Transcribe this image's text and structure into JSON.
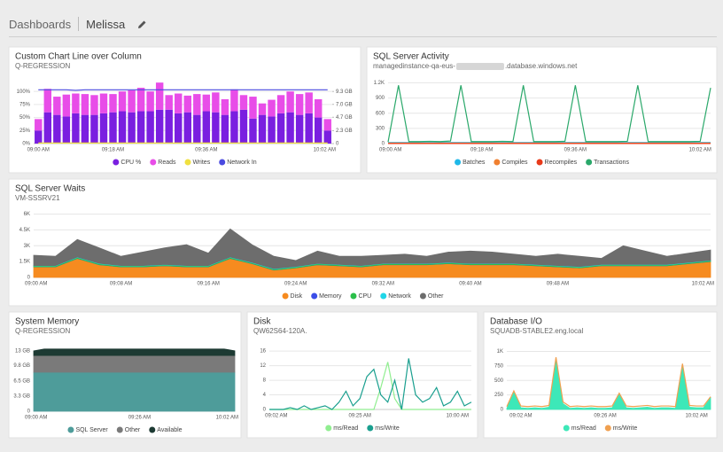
{
  "header": {
    "breadcrumb": "Dashboards",
    "title": "Melissa"
  },
  "chart_data": [
    {
      "type": "combo",
      "title": "Custom Chart Line over Column",
      "subtitle": "Q-REGRESSION",
      "stacked": true,
      "grid": true,
      "categories": [
        "09:00 AM",
        null,
        null,
        null,
        null,
        null,
        null,
        null,
        "09:18 AM",
        null,
        null,
        null,
        null,
        null,
        null,
        null,
        null,
        null,
        "09:36 AM",
        null,
        null,
        null,
        null,
        null,
        null,
        null,
        null,
        null,
        null,
        null,
        null,
        "10:02 AM"
      ],
      "ylim": [
        0,
        119
      ],
      "yticks": [
        {
          "value": 0,
          "label": "0%"
        },
        {
          "value": 25,
          "label": "25%"
        },
        {
          "value": 50,
          "label": "50%"
        },
        {
          "value": 75,
          "label": "75%"
        },
        {
          "value": 100,
          "label": "100%"
        }
      ],
      "y2lim": [
        0,
        11.07
      ],
      "y2ticks": [
        0,
        {
          "value": 2.3,
          "label": "2.3 GB"
        },
        {
          "value": 4.7,
          "label": "4.7 GB"
        },
        {
          "value": 7.0,
          "label": "7.0 GB"
        },
        {
          "value": 9.3,
          "label": "9.3 GB"
        }
      ],
      "series": [
        {
          "name": "CPU %",
          "type": "bar",
          "color": "#7a1fe0",
          "values": [
            25,
            60,
            55,
            52,
            58,
            55,
            55,
            58,
            60,
            62,
            60,
            62,
            62,
            65,
            65,
            58,
            60,
            55,
            62,
            60,
            55,
            62,
            65,
            48,
            55,
            52,
            58,
            60,
            55,
            58,
            50,
            25
          ]
        },
        {
          "name": "Reads",
          "type": "bar",
          "color": "#e84de8",
          "values": [
            22,
            45,
            35,
            42,
            38,
            40,
            38,
            38,
            35,
            38,
            42,
            45,
            38,
            52,
            28,
            38,
            32,
            40,
            32,
            38,
            30,
            42,
            28,
            42,
            22,
            32,
            35,
            40,
            40,
            40,
            35,
            22
          ]
        },
        {
          "name": "Writes",
          "type": "line",
          "axis": "y2",
          "color": "#f0e040",
          "values": [
            0.1,
            0.1,
            0.1,
            0.1,
            0.1,
            0.1,
            0.1,
            0.1,
            0.1,
            0.1,
            0.1,
            0.1,
            0.1,
            0.1,
            0.1,
            0.1,
            0.1,
            0.1,
            0.1,
            0.1,
            0.1,
            0.1,
            0.1,
            0.1,
            0.1,
            0.1,
            0.1,
            0.1,
            0.1,
            0.1,
            0.1,
            0.1
          ]
        },
        {
          "name": "Network In",
          "type": "line",
          "axis": "y2",
          "color": "#4a4ae0",
          "values": [
            9.6,
            9.6,
            9.6,
            9.6,
            9.5,
            9.6,
            9.6,
            9.6,
            9.6,
            9.6,
            9.6,
            9.6,
            9.6,
            9.6,
            9.6,
            9.6,
            9.6,
            9.6,
            9.6,
            9.6,
            9.6,
            9.6,
            9.6,
            9.6,
            9.6,
            9.6,
            9.6,
            9.6,
            9.6,
            9.6,
            9.6,
            9.6
          ]
        }
      ]
    },
    {
      "type": "line",
      "title": "SQL Server Activity",
      "subtitle_parts": [
        "managedinstance-qa-eus-",
        ".database.windows.net"
      ],
      "grid": true,
      "categories": [
        "09:00 AM",
        null,
        null,
        null,
        null,
        null,
        null,
        null,
        null,
        "09:18 AM",
        null,
        null,
        null,
        null,
        null,
        null,
        null,
        null,
        "09:36 AM",
        null,
        null,
        null,
        null,
        null,
        null,
        null,
        null,
        null,
        null,
        null,
        "10:02 AM",
        null
      ],
      "ylim": [
        0,
        1260
      ],
      "yticks": [
        0,
        300,
        600,
        900,
        {
          "value": 1200,
          "label": "1.2K"
        }
      ],
      "series": [
        {
          "name": "Batches",
          "color": "#1fb8e8",
          "values": [
            20,
            20,
            20,
            20,
            20,
            20,
            20,
            20,
            20,
            20,
            20,
            20,
            20,
            20,
            20,
            20,
            20,
            20,
            20,
            20,
            20,
            20,
            20,
            20,
            20,
            20,
            20,
            20,
            20,
            20,
            20,
            20
          ]
        },
        {
          "name": "Compiles",
          "color": "#f08030",
          "values": [
            10,
            10,
            10,
            10,
            10,
            10,
            10,
            10,
            10,
            10,
            10,
            10,
            10,
            10,
            10,
            10,
            10,
            10,
            10,
            10,
            10,
            10,
            10,
            10,
            10,
            10,
            10,
            10,
            10,
            10,
            10,
            10
          ]
        },
        {
          "name": "Recompiles",
          "color": "#e83a1a",
          "values": [
            2,
            2,
            2,
            2,
            2,
            2,
            2,
            2,
            2,
            2,
            2,
            2,
            2,
            2,
            2,
            2,
            2,
            2,
            2,
            2,
            2,
            2,
            2,
            2,
            2,
            2,
            2,
            2,
            2,
            2,
            2,
            2
          ]
        },
        {
          "name": "Transactions",
          "color": "#2aa86a",
          "values": [
            30,
            1150,
            40,
            40,
            45,
            40,
            50,
            1150,
            40,
            40,
            40,
            45,
            40,
            1150,
            40,
            40,
            40,
            45,
            1150,
            40,
            40,
            40,
            40,
            45,
            1150,
            40,
            40,
            40,
            40,
            40,
            45,
            1100
          ]
        }
      ]
    },
    {
      "type": "area",
      "title": "SQL Server Waits",
      "subtitle": "VM-SSSRV21",
      "stacked": true,
      "grid": true,
      "categories": [
        "09:00 AM",
        null,
        null,
        null,
        "09:08 AM",
        null,
        null,
        null,
        "09:16 AM",
        null,
        null,
        null,
        "09:24 AM",
        null,
        null,
        null,
        "09:32 AM",
        null,
        null,
        null,
        "09:40 AM",
        null,
        null,
        null,
        "09:48 AM",
        null,
        null,
        null,
        null,
        null,
        null,
        "10:02 AM"
      ],
      "ylim": [
        0,
        6300
      ],
      "yticks": [
        0,
        {
          "value": 1500,
          "label": "1.5K"
        },
        {
          "value": 3000,
          "label": "3K"
        },
        {
          "value": 4500,
          "label": "4.5K"
        },
        {
          "value": 6000,
          "label": "6K"
        }
      ],
      "series": [
        {
          "name": "Disk",
          "color": "#f68b1f",
          "values": [
            1000,
            1000,
            1800,
            1200,
            1000,
            1000,
            1100,
            1000,
            1000,
            1800,
            1300,
            700,
            900,
            1200,
            1100,
            1000,
            1200,
            1200,
            1200,
            1300,
            1200,
            1200,
            1200,
            1100,
            1000,
            900,
            1100,
            1100,
            1100,
            1100,
            1300,
            1500
          ]
        },
        {
          "name": "Memory",
          "color": "#3b4ee8",
          "values": [
            10,
            10,
            10,
            10,
            10,
            10,
            10,
            10,
            10,
            10,
            10,
            10,
            10,
            10,
            10,
            10,
            10,
            10,
            10,
            10,
            10,
            10,
            10,
            10,
            10,
            10,
            10,
            10,
            10,
            10,
            10,
            10
          ]
        },
        {
          "name": "CPU",
          "color": "#2bbf4a",
          "values": [
            80,
            80,
            80,
            80,
            80,
            80,
            80,
            80,
            80,
            80,
            80,
            80,
            80,
            80,
            80,
            80,
            80,
            80,
            80,
            80,
            80,
            80,
            80,
            80,
            80,
            80,
            80,
            80,
            80,
            80,
            80,
            80
          ]
        },
        {
          "name": "Network",
          "color": "#1fd6e8",
          "values": [
            40,
            40,
            40,
            40,
            40,
            40,
            40,
            40,
            40,
            40,
            40,
            40,
            40,
            40,
            40,
            40,
            40,
            40,
            40,
            40,
            40,
            40,
            40,
            40,
            40,
            40,
            40,
            40,
            40,
            40,
            40,
            40
          ]
        },
        {
          "name": "Other",
          "color": "#6d6d6d",
          "values": [
            970,
            870,
            1670,
            1470,
            870,
            1270,
            1570,
            1970,
            1170,
            2670,
            1670,
            1170,
            570,
            1170,
            770,
            870,
            770,
            870,
            670,
            970,
            1170,
            1070,
            870,
            770,
            1070,
            970,
            570,
            1770,
            1270,
            770,
            870,
            970
          ]
        }
      ]
    },
    {
      "type": "area",
      "title": "System Memory",
      "subtitle": "Q-REGRESSION",
      "stacked": true,
      "grid": false,
      "categories": [
        "09:00 AM",
        null,
        null,
        null,
        null,
        null,
        null,
        null,
        null,
        null,
        "09:26 AM",
        null,
        null,
        null,
        null,
        null,
        null,
        null,
        null,
        "10:02 AM"
      ],
      "ylim": [
        0,
        14.5
      ],
      "yticks": [
        0,
        {
          "value": 3.3,
          "label": "3.3 GB"
        },
        {
          "value": 6.5,
          "label": "6.5 GB"
        },
        {
          "value": 9.8,
          "label": "9.8 GB"
        },
        {
          "value": 13,
          "label": "13 GB"
        }
      ],
      "series": [
        {
          "name": "SQL Server",
          "color": "#4e9c9a",
          "values": [
            8.4,
            8.4,
            8.4,
            8.4,
            8.4,
            8.4,
            8.4,
            8.4,
            8.4,
            8.4,
            8.4,
            8.4,
            8.4,
            8.4,
            8.4,
            8.4,
            8.4,
            8.4,
            8.4,
            8.4
          ]
        },
        {
          "name": "Other",
          "color": "#7a7a7a",
          "values": [
            3.6,
            3.6,
            3.6,
            3.6,
            3.6,
            3.6,
            3.6,
            3.6,
            3.6,
            3.6,
            3.6,
            3.6,
            3.6,
            3.6,
            3.6,
            3.6,
            3.6,
            3.6,
            3.6,
            3.6
          ]
        },
        {
          "name": "Available",
          "color": "#1d3a33",
          "values": [
            1.0,
            1.4,
            1.4,
            1.4,
            1.4,
            1.4,
            1.4,
            1.4,
            1.4,
            1.4,
            1.4,
            1.4,
            1.4,
            1.4,
            1.4,
            1.4,
            1.4,
            1.4,
            1.4,
            1.0
          ]
        }
      ]
    },
    {
      "type": "line",
      "title": "Disk",
      "subtitle": "QW62S64-120A.",
      "grid": true,
      "categories": [
        null,
        "09:02 AM",
        null,
        null,
        null,
        null,
        null,
        null,
        null,
        null,
        null,
        null,
        null,
        "09:25 AM",
        null,
        null,
        null,
        null,
        null,
        null,
        null,
        null,
        null,
        null,
        null,
        null,
        null,
        "10:00 AM",
        null,
        null
      ],
      "ylim": [
        0,
        17.5
      ],
      "yticks": [
        0,
        4,
        8,
        12,
        16
      ],
      "series": [
        {
          "name": "ms/Read",
          "color": "#90ee90",
          "values": [
            0,
            0,
            0,
            0,
            0,
            0,
            0,
            0,
            0,
            0,
            0,
            0,
            0,
            0,
            0,
            0,
            6,
            13,
            3,
            0,
            0,
            0,
            0,
            0,
            0,
            0,
            0,
            0,
            0,
            0
          ]
        },
        {
          "name": "ms/Write",
          "color": "#1a9f8f",
          "values": [
            0,
            0,
            0,
            0.5,
            0,
            1,
            0,
            0.5,
            1,
            0,
            2,
            5,
            1,
            3,
            9,
            11,
            4,
            2,
            8,
            0,
            14,
            4,
            2,
            3,
            6,
            1,
            2,
            5,
            1,
            2
          ]
        }
      ]
    },
    {
      "type": "area",
      "title": "Database I/O",
      "subtitle": "SQUADB-STABLE2.eng.local",
      "stacked": false,
      "grid": true,
      "categories": [
        null,
        null,
        "09:02 AM",
        null,
        null,
        null,
        null,
        null,
        null,
        null,
        null,
        null,
        null,
        null,
        "09:26 AM",
        null,
        null,
        null,
        null,
        null,
        null,
        null,
        null,
        null,
        null,
        null,
        null,
        "10:02 AM",
        null,
        null
      ],
      "ylim": [
        0,
        1100
      ],
      "yticks": [
        0,
        250,
        500,
        750,
        {
          "value": 1000,
          "label": "1K"
        }
      ],
      "series": [
        {
          "name": "ms/Read",
          "color": "#3de8b8",
          "values": [
            20,
            300,
            30,
            20,
            30,
            20,
            40,
            880,
            100,
            20,
            30,
            20,
            30,
            20,
            20,
            30,
            260,
            30,
            20,
            30,
            40,
            20,
            30,
            30,
            20,
            770,
            40,
            30,
            30,
            200
          ]
        },
        {
          "name": "ms/Write",
          "type": "line",
          "color": "#f0a050",
          "values": [
            50,
            320,
            60,
            50,
            60,
            50,
            70,
            900,
            130,
            50,
            60,
            50,
            60,
            50,
            50,
            60,
            280,
            60,
            50,
            60,
            70,
            50,
            60,
            60,
            50,
            790,
            70,
            60,
            60,
            220
          ]
        }
      ]
    }
  ]
}
